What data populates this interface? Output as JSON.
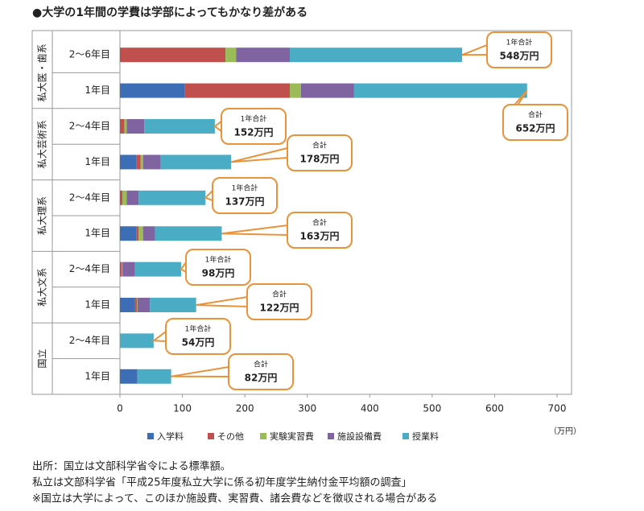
{
  "chart_data": {
    "type": "bar",
    "orientation": "horizontal",
    "stacked": true,
    "title": "●大学の1年間の学費は学部によってもかなり差がある",
    "groups": [
      "私大医・歯系",
      "私大芸術系",
      "私大理系",
      "私大文系",
      "国立"
    ],
    "categories": [
      "2～6年目",
      "1年目",
      "2～4年目",
      "1年目",
      "2～4年目",
      "1年目",
      "2～4年目",
      "1年目",
      "2～4年目",
      "1年目"
    ],
    "series": [
      {
        "name": "入学料",
        "color": "#3d6db5",
        "values": [
          0,
          104,
          0,
          26,
          0,
          26,
          0,
          24,
          0,
          28
        ]
      },
      {
        "name": "その他",
        "color": "#c0504d",
        "values": [
          169,
          168,
          7,
          7,
          4,
          4,
          3,
          3,
          0,
          0
        ]
      },
      {
        "name": "実験実習費",
        "color": "#9bbb59",
        "values": [
          17,
          18,
          4,
          4,
          7,
          7,
          1,
          1,
          0,
          0
        ]
      },
      {
        "name": "施設設備費",
        "color": "#8064a2",
        "values": [
          86,
          85,
          28,
          28,
          19,
          19,
          20,
          20,
          0,
          0
        ]
      },
      {
        "name": "授業料",
        "color": "#4bacc6",
        "values": [
          276,
          277,
          113,
          113,
          107,
          107,
          74,
          74,
          54,
          54
        ]
      }
    ],
    "xlim": [
      0,
      700
    ],
    "xticks": [
      0,
      100,
      200,
      300,
      400,
      500,
      600,
      700
    ],
    "x_label": "（万円）",
    "callout_color": "#e8923a",
    "callouts": [
      {
        "title": "1年合計",
        "total": "548万円"
      },
      {
        "title": "合計",
        "total": "652万円"
      },
      {
        "title": "1年合計",
        "total": "152万円"
      },
      {
        "title": "合計",
        "total": "178万円"
      },
      {
        "title": "1年合計",
        "total": "137万円"
      },
      {
        "title": "合計",
        "total": "163万円"
      },
      {
        "title": "1年合計",
        "total": "98万円"
      },
      {
        "title": "合計",
        "total": "122万円"
      },
      {
        "title": "1年合計",
        "total": "54万円"
      },
      {
        "title": "合計",
        "total": "82万円"
      }
    ],
    "footnotes": [
      "出所：国立は文部科学省令による標準額。",
      "私立は文部科学省「平成25年度私立大学に係る初年度学生納付金平均額の調査」",
      "※国立は大学によって、このほか施設費、実習費、諸会費などを徴収される場合がある"
    ]
  }
}
